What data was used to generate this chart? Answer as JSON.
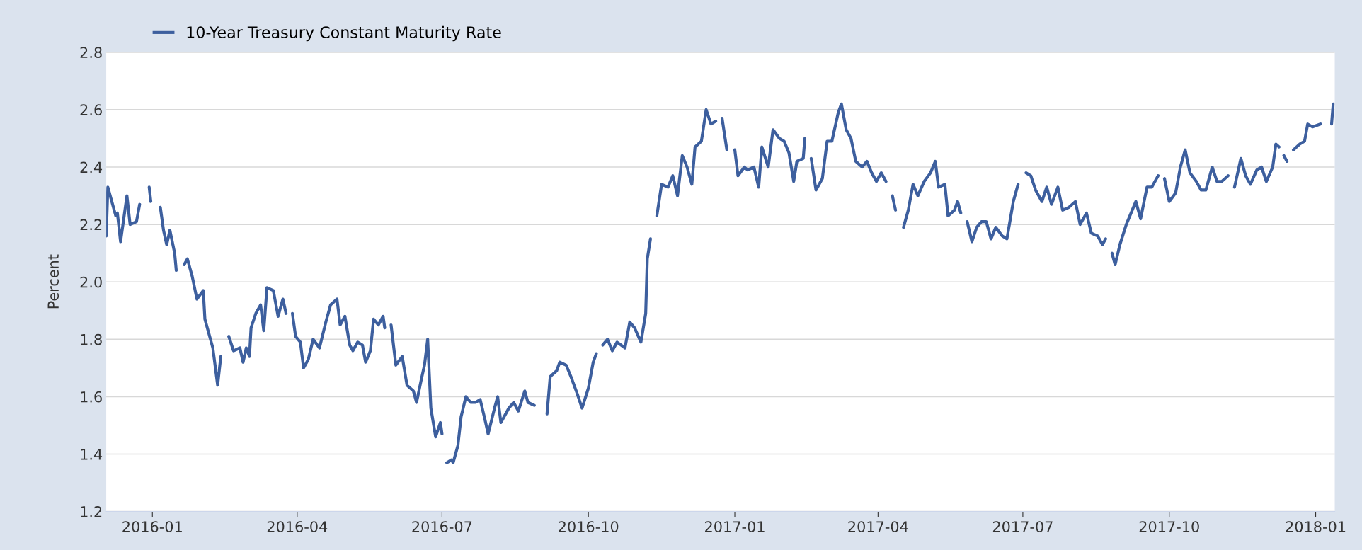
{
  "chart_data": {
    "type": "line",
    "ylabel": "Percent",
    "legend": "top left",
    "grid": "y",
    "marker": "none",
    "line_style": "solid",
    "xlim": [
      "2015-12-03",
      "2018-01-13"
    ],
    "ylim": [
      1.2,
      2.8
    ],
    "yticks": [
      1.2,
      1.4,
      1.6,
      1.8,
      {
        "value": 2,
        "label": "2.0"
      },
      2.2,
      2.4,
      2.6,
      2.8
    ],
    "xticks": [
      {
        "value": "2016-01-01",
        "label": "2016-01"
      },
      {
        "value": "2016-04-01",
        "label": "2016-04"
      },
      {
        "value": "2016-07-01",
        "label": "2016-07"
      },
      {
        "value": "2016-10-01",
        "label": "2016-10"
      },
      {
        "value": "2017-01-01",
        "label": "2017-01"
      },
      {
        "value": "2017-04-01",
        "label": "2017-04"
      },
      {
        "value": "2017-07-01",
        "label": "2017-07"
      },
      {
        "value": "2017-10-01",
        "label": "2017-10"
      },
      {
        "value": "2018-01-01",
        "label": "2018-01"
      }
    ],
    "series": [
      {
        "name": "10-Year Treasury Constant Maturity Rate",
        "color": "#3d5f9e",
        "x": [
          "2015-12-03",
          "2015-12-04",
          "2015-12-06",
          "2015-12-09",
          "2015-12-10",
          "2015-12-12",
          "2015-12-16",
          "2015-12-18",
          "2015-12-22",
          "2015-12-24",
          "2015-12-26",
          "2015-12-30",
          "2015-12-31",
          "2016-01-02",
          "2016-01-06",
          "2016-01-08",
          "2016-01-10",
          "2016-01-12",
          "2016-01-15",
          "2016-01-16",
          "2016-01-18",
          "2016-01-21",
          "2016-01-23",
          "2016-01-26",
          "2016-01-29",
          "2016-02-02",
          "2016-02-03",
          "2016-02-08",
          "2016-02-11",
          "2016-02-13",
          "2016-02-15",
          "2016-02-18",
          "2016-02-21",
          "2016-02-25",
          "2016-02-27",
          "2016-02-29",
          "2016-03-02",
          "2016-03-03",
          "2016-03-06",
          "2016-03-09",
          "2016-03-11",
          "2016-03-13",
          "2016-03-17",
          "2016-03-20",
          "2016-03-23",
          "2016-03-25",
          "2016-03-27",
          "2016-03-29",
          "2016-03-31",
          "2016-04-03",
          "2016-04-05",
          "2016-04-08",
          "2016-04-11",
          "2016-04-15",
          "2016-04-19",
          "2016-04-22",
          "2016-04-26",
          "2016-04-28",
          "2016-05-01",
          "2016-05-04",
          "2016-05-06",
          "2016-05-09",
          "2016-05-12",
          "2016-05-14",
          "2016-05-17",
          "2016-05-19",
          "2016-05-22",
          "2016-05-25",
          "2016-05-26",
          "2016-05-28",
          "2016-05-30",
          "2016-06-02",
          "2016-06-06",
          "2016-06-09",
          "2016-06-13",
          "2016-06-15",
          "2016-06-18",
          "2016-06-20",
          "2016-06-22",
          "2016-06-24",
          "2016-06-27",
          "2016-06-30",
          "2016-07-01",
          "2016-07-02",
          "2016-07-04",
          "2016-07-07",
          "2016-07-08",
          "2016-07-11",
          "2016-07-13",
          "2016-07-16",
          "2016-07-19",
          "2016-07-22",
          "2016-07-25",
          "2016-07-28",
          "2016-07-30",
          "2016-08-03",
          "2016-08-05",
          "2016-08-07",
          "2016-08-12",
          "2016-08-15",
          "2016-08-18",
          "2016-08-22",
          "2016-08-24",
          "2016-08-28",
          "2016-08-31",
          "2016-09-05",
          "2016-09-07",
          "2016-09-11",
          "2016-09-13",
          "2016-09-17",
          "2016-09-20",
          "2016-09-24",
          "2016-09-27",
          "2016-10-01",
          "2016-10-04",
          "2016-10-06",
          "2016-10-08",
          "2016-10-10",
          "2016-10-13",
          "2016-10-16",
          "2016-10-19",
          "2016-10-24",
          "2016-10-27",
          "2016-10-30",
          "2016-11-03",
          "2016-11-06",
          "2016-11-07",
          "2016-11-09",
          "2016-11-11",
          "2016-11-13",
          "2016-11-16",
          "2016-11-20",
          "2016-11-23",
          "2016-11-26",
          "2016-11-29",
          "2016-12-02",
          "2016-12-05",
          "2016-12-07",
          "2016-12-11",
          "2016-12-14",
          "2016-12-17",
          "2016-12-20",
          "2016-12-22",
          "2016-12-24",
          "2016-12-27",
          "2016-12-29",
          "2017-01-01",
          "2017-01-03",
          "2017-01-07",
          "2017-01-09",
          "2017-01-13",
          "2017-01-16",
          "2017-01-18",
          "2017-01-22",
          "2017-01-25",
          "2017-01-29",
          "2017-02-01",
          "2017-02-04",
          "2017-02-07",
          "2017-02-09",
          "2017-02-13",
          "2017-02-14",
          "2017-02-16",
          "2017-02-18",
          "2017-02-21",
          "2017-02-25",
          "2017-02-28",
          "2017-03-03",
          "2017-03-07",
          "2017-03-09",
          "2017-03-12",
          "2017-03-15",
          "2017-03-18",
          "2017-03-22",
          "2017-03-25",
          "2017-03-28",
          "2017-03-31",
          "2017-04-03",
          "2017-04-06",
          "2017-04-08",
          "2017-04-10",
          "2017-04-12",
          "2017-04-14",
          "2017-04-17",
          "2017-04-20",
          "2017-04-23",
          "2017-04-26",
          "2017-04-30",
          "2017-05-04",
          "2017-05-07",
          "2017-05-09",
          "2017-05-13",
          "2017-05-15",
          "2017-05-19",
          "2017-05-21",
          "2017-05-23",
          "2017-05-25",
          "2017-05-27",
          "2017-05-30",
          "2017-06-02",
          "2017-06-05",
          "2017-06-08",
          "2017-06-11",
          "2017-06-14",
          "2017-06-18",
          "2017-06-21",
          "2017-06-25",
          "2017-06-28",
          "2017-07-01",
          "2017-07-03",
          "2017-07-06",
          "2017-07-09",
          "2017-07-13",
          "2017-07-16",
          "2017-07-19",
          "2017-07-23",
          "2017-07-26",
          "2017-07-30",
          "2017-08-03",
          "2017-08-06",
          "2017-08-10",
          "2017-08-13",
          "2017-08-17",
          "2017-08-20",
          "2017-08-22",
          "2017-08-24",
          "2017-08-26",
          "2017-08-28",
          "2017-08-31",
          "2017-09-04",
          "2017-09-07",
          "2017-09-10",
          "2017-09-13",
          "2017-09-17",
          "2017-09-20",
          "2017-09-24",
          "2017-09-26",
          "2017-09-28",
          "2017-10-01",
          "2017-10-05",
          "2017-10-08",
          "2017-10-11",
          "2017-10-14",
          "2017-10-18",
          "2017-10-21",
          "2017-10-24",
          "2017-10-28",
          "2017-10-31",
          "2017-11-03",
          "2017-11-07",
          "2017-11-09",
          "2017-11-11",
          "2017-11-15",
          "2017-11-18",
          "2017-11-21",
          "2017-11-25",
          "2017-11-28",
          "2017-12-01",
          "2017-12-05",
          "2017-12-07",
          "2017-12-09",
          "2017-12-10",
          "2017-12-12",
          "2017-12-14",
          "2017-12-16",
          "2017-12-18",
          "2017-12-22",
          "2017-12-25",
          "2017-12-27",
          "2017-12-30",
          "2018-01-04",
          "2018-01-09",
          "2018-01-11",
          "2018-01-12"
        ],
        "values": [
          2.16,
          2.33,
          2.29,
          2.23,
          2.24,
          2.14,
          2.3,
          2.2,
          2.21,
          2.27,
          null,
          2.33,
          2.28,
          null,
          2.26,
          2.18,
          2.13,
          2.18,
          2.1,
          2.04,
          null,
          2.06,
          2.08,
          2.02,
          1.94,
          1.97,
          1.87,
          1.77,
          1.64,
          1.74,
          null,
          1.81,
          1.76,
          1.77,
          1.72,
          1.77,
          1.74,
          1.84,
          1.89,
          1.92,
          1.83,
          1.98,
          1.97,
          1.88,
          1.94,
          1.89,
          null,
          1.89,
          1.81,
          1.79,
          1.7,
          1.73,
          1.8,
          1.77,
          1.86,
          1.92,
          1.94,
          1.85,
          1.88,
          1.78,
          1.76,
          1.79,
          1.78,
          1.72,
          1.76,
          1.87,
          1.85,
          1.88,
          1.84,
          null,
          1.85,
          1.71,
          1.74,
          1.64,
          1.62,
          1.58,
          1.66,
          1.71,
          1.8,
          1.56,
          1.46,
          1.51,
          1.47,
          null,
          1.37,
          1.38,
          1.37,
          1.43,
          1.53,
          1.6,
          1.58,
          1.58,
          1.59,
          1.52,
          1.47,
          1.56,
          1.6,
          1.51,
          1.56,
          1.58,
          1.55,
          1.62,
          1.58,
          1.57,
          null,
          1.54,
          1.67,
          1.69,
          1.72,
          1.71,
          1.67,
          1.61,
          1.56,
          1.63,
          1.72,
          1.75,
          null,
          1.78,
          1.8,
          1.76,
          1.79,
          1.77,
          1.86,
          1.84,
          1.79,
          1.89,
          2.08,
          2.15,
          null,
          2.23,
          2.34,
          2.33,
          2.37,
          2.3,
          2.44,
          2.4,
          2.34,
          2.47,
          2.49,
          2.6,
          2.55,
          2.56,
          null,
          2.57,
          2.46,
          null,
          2.46,
          2.37,
          2.4,
          2.39,
          2.4,
          2.33,
          2.47,
          2.4,
          2.53,
          2.5,
          2.49,
          2.45,
          2.35,
          2.42,
          2.43,
          2.5,
          null,
          2.43,
          2.32,
          2.36,
          2.49,
          2.49,
          2.59,
          2.62,
          2.53,
          2.5,
          2.42,
          2.4,
          2.42,
          2.38,
          2.35,
          2.38,
          2.35,
          null,
          2.3,
          2.25,
          null,
          2.19,
          2.25,
          2.34,
          2.3,
          2.35,
          2.38,
          2.42,
          2.33,
          2.34,
          2.23,
          2.25,
          2.28,
          2.24,
          null,
          2.21,
          2.14,
          2.19,
          2.21,
          2.21,
          2.15,
          2.19,
          2.16,
          2.15,
          2.28,
          2.34,
          null,
          2.38,
          2.37,
          2.32,
          2.28,
          2.33,
          2.27,
          2.33,
          2.25,
          2.26,
          2.28,
          2.2,
          2.24,
          2.17,
          2.16,
          2.13,
          2.15,
          null,
          2.1,
          2.06,
          2.13,
          2.2,
          2.24,
          2.28,
          2.22,
          2.33,
          2.33,
          2.37,
          null,
          2.36,
          2.28,
          2.31,
          2.4,
          2.46,
          2.38,
          2.35,
          2.32,
          2.32,
          2.4,
          2.35,
          2.35,
          2.37,
          null,
          2.33,
          2.43,
          2.37,
          2.34,
          2.39,
          2.4,
          2.35,
          2.4,
          2.48,
          2.47,
          null,
          2.44,
          2.42,
          null,
          2.46,
          2.48,
          2.49,
          2.55,
          2.54,
          2.55,
          null,
          2.55,
          2.62
        ]
      }
    ]
  }
}
